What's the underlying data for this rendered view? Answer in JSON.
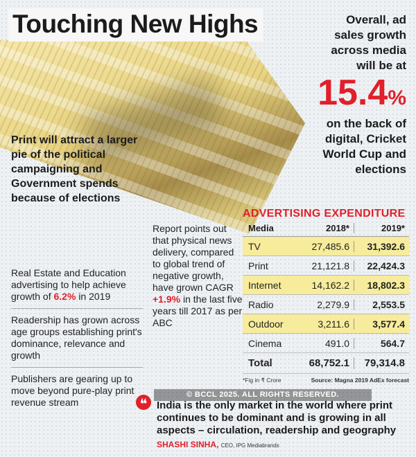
{
  "title": "Touching New Highs",
  "right_block": {
    "line1": "Overall, ad",
    "line2": "sales growth",
    "line3": "across media",
    "line4": "will be at",
    "big_value": "15.4",
    "big_pct": "%",
    "after1": "on the back of",
    "after2": "digital, Cricket",
    "after3": "World Cup and",
    "after4": "elections"
  },
  "left_head": "Print will attract a larger pie of the political campaigning and Government spends because of elections",
  "notes": {
    "n1_pre": "Real Estate and Education advertising to help achieve growth of ",
    "n1_val": "6.2%",
    "n1_post": " in 2019",
    "n2": "Readership has grown across age groups establishing print's dominance, relevance and growth",
    "n3": "Publishers are gearing up to move beyond pure-play print revenue stream"
  },
  "report": {
    "pre": "Report points out that physical news delivery, compared to global trend of negative growth, have grown CAGR ",
    "val": "+1.9%",
    "post": " in the last five years till 2017 as per ABC"
  },
  "table": {
    "title": "ADVERTISING EXPENDITURE",
    "headers": {
      "media": "Media",
      "y2018": "2018*",
      "y2019": "2019*"
    },
    "rows": [
      {
        "media": "TV",
        "y2018": "27,485.6",
        "y2019": "31,392.6"
      },
      {
        "media": "Print",
        "y2018": "21,121.8",
        "y2019": "22,424.3"
      },
      {
        "media": "Internet",
        "y2018": "14,162.2",
        "y2019": "18,802.3"
      },
      {
        "media": "Radio",
        "y2018": "2,279.9",
        "y2019": "2,553.5"
      },
      {
        "media": "Outdoor",
        "y2018": "3,211.6",
        "y2019": "3,577.4"
      },
      {
        "media": "Cinema",
        "y2018": "491.0",
        "y2019": "564.7"
      }
    ],
    "total": {
      "media": "Total",
      "y2018": "68,752.1",
      "y2019": "79,314.8"
    },
    "footnote": "*Fig in ₹ Crore",
    "source": "Source: Magna 2019 AdEx forecast"
  },
  "quote": {
    "text": "India is the only market in the world where print continues to be dominant and is growing in all aspects – circulation, readership and geography",
    "author": "SHASHI SINHA,",
    "role": "CEO, IPG Mediabrands"
  },
  "watermark": "© BCCL 2025. ALL RIGHTS RESERVED."
}
